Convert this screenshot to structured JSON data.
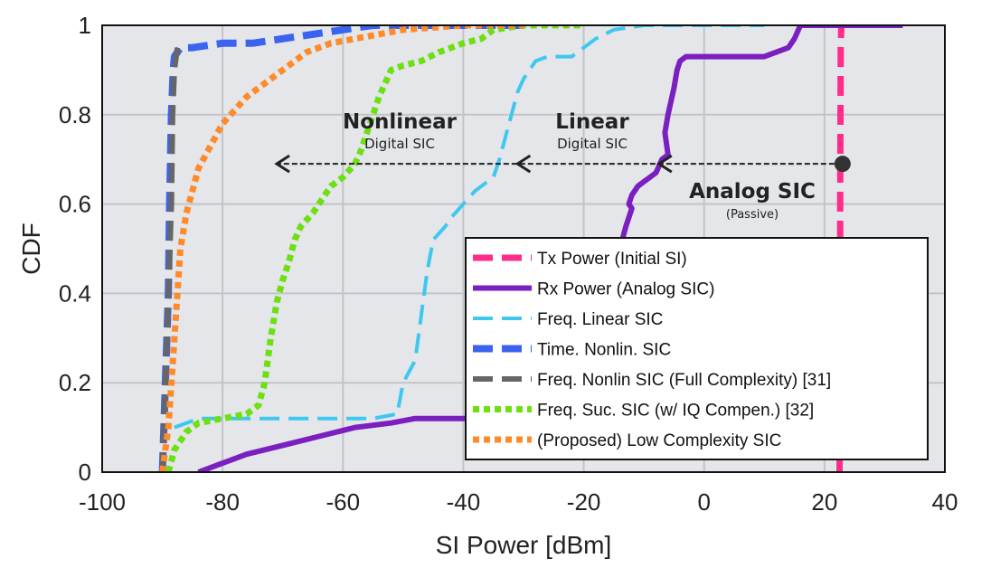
{
  "chart_data": {
    "type": "line",
    "xlabel": "SI Power [dBm]",
    "ylabel": "CDF",
    "xlim": [
      -100,
      40
    ],
    "ylim": [
      0,
      1
    ],
    "xticks": [
      "-100",
      "-80",
      "-60",
      "-40",
      "-20",
      "0",
      "20",
      "40"
    ],
    "yticks": [
      "0",
      "0.2",
      "0.4",
      "0.6",
      "0.8",
      "1"
    ],
    "grid": true,
    "legend_position": "bottom-right",
    "series": [
      {
        "name": "Tx Power (Initial SI)",
        "color": "#ff2d8a",
        "style": "dashed",
        "x": [
          22.5,
          22.6,
          22.6,
          22.7,
          22.8
        ],
        "y": [
          0,
          0.2,
          0.6,
          0.95,
          1.0
        ]
      },
      {
        "name": "Rx Power (Analog SIC)",
        "color": "#7b1fc0",
        "style": "solid",
        "x": [
          -84,
          -80,
          -76,
          -70,
          -64,
          -58,
          -52,
          -48,
          -45,
          -40,
          -30,
          -20,
          -17,
          -16,
          -15,
          -14,
          -13,
          -12,
          -12.5,
          -12,
          -11,
          -10,
          -9,
          -8,
          -7,
          -6,
          -6.5,
          -6,
          -5,
          -4.5,
          -4,
          -3,
          0,
          5,
          10,
          14,
          15,
          16,
          18,
          25,
          33
        ],
        "y": [
          0,
          0.02,
          0.04,
          0.06,
          0.08,
          0.1,
          0.11,
          0.12,
          0.12,
          0.12,
          0.12,
          0.13,
          0.2,
          0.3,
          0.45,
          0.5,
          0.55,
          0.59,
          0.6,
          0.62,
          0.64,
          0.65,
          0.66,
          0.67,
          0.7,
          0.71,
          0.76,
          0.8,
          0.86,
          0.9,
          0.92,
          0.93,
          0.93,
          0.93,
          0.93,
          0.95,
          0.97,
          1.0,
          1.0,
          1.0,
          1.0
        ]
      },
      {
        "name": "Freq. Linear SIC",
        "color": "#3ec8f0",
        "style": "dashed",
        "x": [
          -88,
          -86,
          -84,
          -80,
          -70,
          -60,
          -55,
          -51,
          -50,
          -48,
          -47,
          -46,
          -45,
          -43,
          -42,
          -40,
          -38,
          -35,
          -34,
          -33,
          -32,
          -31,
          -30,
          -29,
          -28,
          -26,
          -24,
          -22,
          -20,
          -18,
          -15,
          -10,
          -5,
          0,
          5,
          10
        ],
        "y": [
          0.1,
          0.11,
          0.12,
          0.12,
          0.12,
          0.12,
          0.12,
          0.13,
          0.2,
          0.25,
          0.35,
          0.45,
          0.52,
          0.55,
          0.57,
          0.6,
          0.63,
          0.66,
          0.7,
          0.75,
          0.8,
          0.85,
          0.88,
          0.9,
          0.92,
          0.93,
          0.93,
          0.93,
          0.95,
          0.97,
          0.99,
          1.0,
          1.0,
          1.0,
          1.0,
          1.0
        ]
      },
      {
        "name": "Time. Nonlin. SIC",
        "color": "#3b63f0",
        "style": "dashed",
        "x": [
          -90,
          -89.5,
          -89,
          -88.8,
          -88.5,
          -88.2,
          -88,
          -87,
          -85,
          -80,
          -75,
          -70,
          -65,
          -60,
          -55,
          -50,
          -40,
          -30
        ],
        "y": [
          0,
          0.2,
          0.4,
          0.6,
          0.8,
          0.9,
          0.93,
          0.95,
          0.95,
          0.96,
          0.96,
          0.97,
          0.98,
          0.99,
          1.0,
          1.0,
          1.0,
          1.0
        ]
      },
      {
        "name": "Freq. Nonlin SIC (Full Complexity) [31]",
        "color": "#666666",
        "style": "dashed",
        "x": [
          -90,
          -89.5,
          -89,
          -88.5,
          -88.3,
          -88,
          -87.5
        ],
        "y": [
          0,
          0.2,
          0.4,
          0.6,
          0.8,
          0.9,
          0.95
        ]
      },
      {
        "name": "Freq. Suc. SIC (w/ IQ Compen.) [32]",
        "color": "#6de012",
        "style": "dotted",
        "x": [
          -89,
          -88,
          -86,
          -84,
          -80,
          -76,
          -74,
          -73,
          -72,
          -71,
          -70,
          -69,
          -68,
          -67,
          -65,
          -63,
          -62,
          -60,
          -58,
          -57,
          -56,
          -55,
          -54,
          -53,
          -52,
          -50,
          -47,
          -44,
          -40,
          -37,
          -35,
          -30,
          -25,
          -20
        ],
        "y": [
          0,
          0.05,
          0.09,
          0.11,
          0.12,
          0.13,
          0.15,
          0.2,
          0.3,
          0.38,
          0.43,
          0.47,
          0.52,
          0.55,
          0.58,
          0.62,
          0.64,
          0.66,
          0.69,
          0.72,
          0.76,
          0.8,
          0.84,
          0.87,
          0.9,
          0.91,
          0.92,
          0.94,
          0.96,
          0.97,
          0.99,
          1.0,
          1.0,
          1.0
        ]
      },
      {
        "name": "(Proposed) Low Complexity SIC",
        "color": "#ff8a2a",
        "style": "dotted",
        "x": [
          -90,
          -89,
          -88.5,
          -88,
          -87.5,
          -87,
          -86,
          -85,
          -84,
          -82,
          -80,
          -78,
          -76,
          -74,
          -72,
          -70,
          -68,
          -66,
          -62,
          -58,
          -54,
          -50,
          -45,
          -40,
          -35,
          -30
        ],
        "y": [
          0,
          0.1,
          0.2,
          0.3,
          0.4,
          0.5,
          0.58,
          0.63,
          0.68,
          0.73,
          0.78,
          0.81,
          0.84,
          0.86,
          0.88,
          0.9,
          0.92,
          0.94,
          0.96,
          0.97,
          0.98,
          0.99,
          0.995,
          1.0,
          1.0,
          1.0
        ]
      }
    ],
    "annotations": {
      "nonlinear_title": "Nonlinear",
      "nonlinear_sub": "Digital SIC",
      "linear_title": "Linear",
      "linear_sub": "Digital SIC",
      "analog_title": "Analog SIC",
      "analog_sub": "(Passive)"
    },
    "arrow": {
      "start_x": 23,
      "y": 0.69,
      "heads_x": [
        -71,
        -31,
        -7.5
      ]
    }
  }
}
